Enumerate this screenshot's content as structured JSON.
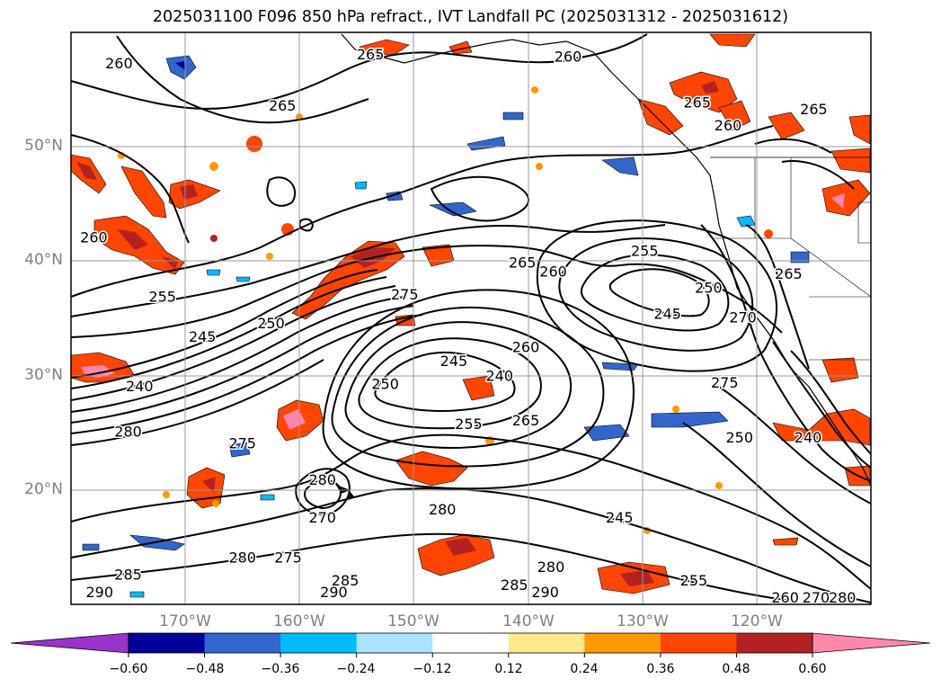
{
  "title": "2025031100 F096 850 hPa refract., IVT Landfall PC (2025031312 - 2025031612)",
  "map": {
    "projection": "plate-carree",
    "lon_range": [
      -180,
      -110
    ],
    "lat_range": [
      10,
      60
    ],
    "grid": true,
    "lat_ticks": [
      "20°N",
      "30°N",
      "40°N",
      "50°N"
    ],
    "lon_ticks": [
      "170°W",
      "160°W",
      "150°W",
      "140°W",
      "130°W",
      "120°W"
    ],
    "contour_labels": [
      {
        "text": "260",
        "lon": -175.8,
        "lat": 57.2
      },
      {
        "text": "265",
        "lon": -153.8,
        "lat": 58.0
      },
      {
        "text": "260",
        "lon": -136.5,
        "lat": 57.8
      },
      {
        "text": "265",
        "lon": -161.5,
        "lat": 53.5
      },
      {
        "text": "265",
        "lon": -125.2,
        "lat": 53.8
      },
      {
        "text": "260",
        "lon": -122.5,
        "lat": 51.8
      },
      {
        "text": "265",
        "lon": -115.0,
        "lat": 53.2
      },
      {
        "text": "260",
        "lon": -178.0,
        "lat": 42.0
      },
      {
        "text": "255",
        "lon": -172.0,
        "lat": 36.8
      },
      {
        "text": "245",
        "lon": -168.5,
        "lat": 33.3
      },
      {
        "text": "250",
        "lon": -162.5,
        "lat": 34.5
      },
      {
        "text": "240",
        "lon": -174.0,
        "lat": 29.0
      },
      {
        "text": "280",
        "lon": -175.0,
        "lat": 25.0
      },
      {
        "text": "275",
        "lon": -165.0,
        "lat": 24.0
      },
      {
        "text": "275",
        "lon": -150.8,
        "lat": 37.0
      },
      {
        "text": "265",
        "lon": -140.5,
        "lat": 39.8
      },
      {
        "text": "260",
        "lon": -137.8,
        "lat": 39.0
      },
      {
        "text": "255",
        "lon": -129.8,
        "lat": 40.8
      },
      {
        "text": "250",
        "lon": -124.2,
        "lat": 37.6
      },
      {
        "text": "245",
        "lon": -127.8,
        "lat": 35.3
      },
      {
        "text": "260",
        "lon": -140.2,
        "lat": 32.4
      },
      {
        "text": "245",
        "lon": -146.5,
        "lat": 31.2
      },
      {
        "text": "240",
        "lon": -142.5,
        "lat": 29.9
      },
      {
        "text": "250",
        "lon": -152.5,
        "lat": 29.2
      },
      {
        "text": "255",
        "lon": -145.2,
        "lat": 25.7
      },
      {
        "text": "265",
        "lon": -140.2,
        "lat": 26.0
      },
      {
        "text": "275",
        "lon": -122.8,
        "lat": 29.3
      },
      {
        "text": "270",
        "lon": -121.2,
        "lat": 35.0
      },
      {
        "text": "265",
        "lon": -117.2,
        "lat": 38.8
      },
      {
        "text": "250",
        "lon": -121.5,
        "lat": 24.5
      },
      {
        "text": "240",
        "lon": -115.5,
        "lat": 24.5
      },
      {
        "text": "280",
        "lon": -158.0,
        "lat": 20.8
      },
      {
        "text": "270",
        "lon": -158.0,
        "lat": 17.5
      },
      {
        "text": "280",
        "lon": -147.5,
        "lat": 18.2
      },
      {
        "text": "245",
        "lon": -132.0,
        "lat": 17.5
      },
      {
        "text": "275",
        "lon": -161.0,
        "lat": 14.0
      },
      {
        "text": "280",
        "lon": -165.0,
        "lat": 14.0
      },
      {
        "text": "285",
        "lon": -175.0,
        "lat": 12.5
      },
      {
        "text": "290",
        "lon": -177.5,
        "lat": 11.0
      },
      {
        "text": "285",
        "lon": -156.0,
        "lat": 12.0
      },
      {
        "text": "290",
        "lon": -157.0,
        "lat": 11.0
      },
      {
        "text": "280",
        "lon": -138.0,
        "lat": 13.2
      },
      {
        "text": "285",
        "lon": -141.2,
        "lat": 11.6
      },
      {
        "text": "290",
        "lon": -138.5,
        "lat": 11.0
      },
      {
        "text": "255",
        "lon": -125.5,
        "lat": 12.0
      },
      {
        "text": "260",
        "lon": -117.5,
        "lat": 10.5
      },
      {
        "text": "270",
        "lon": -114.8,
        "lat": 10.5
      },
      {
        "text": "280",
        "lon": -112.5,
        "lat": 10.5
      }
    ]
  },
  "colorbar": {
    "extend": "both",
    "boundaries": [
      -0.72,
      -0.6,
      -0.48,
      -0.36,
      -0.24,
      -0.12,
      0.12,
      0.24,
      0.36,
      0.48,
      0.6,
      0.72
    ],
    "colors": [
      "#9933cc",
      "#000099",
      "#3366cc",
      "#00bbff",
      "#aae3ff",
      "#ffffff",
      "#ffe98c",
      "#ff9900",
      "#ff4500",
      "#b22222",
      "#ff88aa"
    ],
    "under_color": "#9933cc",
    "over_color": "#ff88aa",
    "tick_labels": [
      "−0.60",
      "−0.48",
      "−0.36",
      "−0.24",
      "−0.12",
      "0.12",
      "0.24",
      "0.36",
      "0.48",
      "0.60"
    ]
  }
}
